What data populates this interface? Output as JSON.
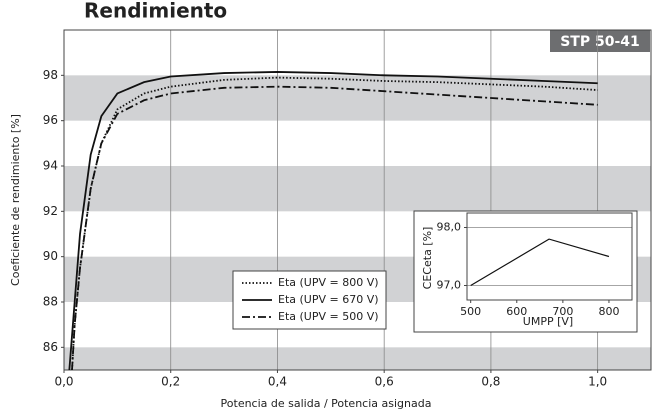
{
  "chart_data": [
    {
      "type": "line",
      "title": "Rendimiento",
      "badge": "STP 50-41",
      "x_label": "Potencia de salida / Potencia asignada",
      "y_label": "Coeficiente de rendimiento [%]",
      "xlim": [
        0,
        1.1
      ],
      "ylim": [
        85,
        100
      ],
      "xticks": [
        {
          "value": 0,
          "label": "0,0"
        },
        {
          "value": 0.2,
          "label": "0,2"
        },
        {
          "value": 0.4,
          "label": "0,4"
        },
        {
          "value": 0.6,
          "label": "0,6"
        },
        {
          "value": 0.8,
          "label": "0,8"
        },
        {
          "value": 1.0,
          "label": "1,0"
        }
      ],
      "yticks": [
        86,
        88,
        90,
        92,
        94,
        96,
        98
      ],
      "grid": true,
      "banded": true,
      "legend": "bottom-center",
      "series": [
        {
          "name": "Eta (UPV = 800 V)",
          "color": "#111111",
          "dash": "dotted",
          "x": [
            0.015,
            0.02,
            0.03,
            0.05,
            0.07,
            0.1,
            0.15,
            0.2,
            0.3,
            0.4,
            0.5,
            0.6,
            0.7,
            0.8,
            0.9,
            1.0
          ],
          "values": [
            85,
            87,
            89.5,
            93,
            95,
            96.5,
            97.2,
            97.5,
            97.8,
            97.9,
            97.85,
            97.75,
            97.7,
            97.6,
            97.5,
            97.35
          ]
        },
        {
          "name": "Eta (UPV = 670 V)",
          "color": "#111111",
          "dash": "solid",
          "x": [
            0.01,
            0.02,
            0.03,
            0.05,
            0.07,
            0.1,
            0.15,
            0.2,
            0.3,
            0.4,
            0.5,
            0.6,
            0.7,
            0.8,
            0.9,
            1.0
          ],
          "values": [
            85,
            88,
            91,
            94.5,
            96.2,
            97.2,
            97.7,
            97.95,
            98.1,
            98.15,
            98.1,
            98.0,
            97.95,
            97.85,
            97.75,
            97.65
          ]
        },
        {
          "name": "Eta (UPV = 500 V)",
          "color": "#111111",
          "dash": "dashdot",
          "x": [
            0.015,
            0.02,
            0.03,
            0.05,
            0.07,
            0.1,
            0.15,
            0.2,
            0.3,
            0.4,
            0.5,
            0.6,
            0.7,
            0.8,
            0.9,
            1.0
          ],
          "values": [
            85,
            87,
            89.5,
            93,
            95,
            96.3,
            96.9,
            97.2,
            97.45,
            97.5,
            97.45,
            97.3,
            97.15,
            97.0,
            96.85,
            96.7
          ]
        }
      ]
    },
    {
      "type": "line",
      "x_label": "UMPP [V]",
      "y_label": "CECeta [%]",
      "xlim": [
        492,
        850
      ],
      "ylim": [
        96.75,
        98.25
      ],
      "xticks": [
        500,
        600,
        700,
        800
      ],
      "yticks": [
        {
          "value": 97,
          "label": "97,0"
        },
        {
          "value": 98,
          "label": "98,0"
        }
      ],
      "grid": true,
      "series": [
        {
          "color": "#111111",
          "dash": "solid",
          "x": [
            500,
            670,
            800
          ],
          "values": [
            97.0,
            97.8,
            97.5
          ]
        }
      ]
    }
  ]
}
